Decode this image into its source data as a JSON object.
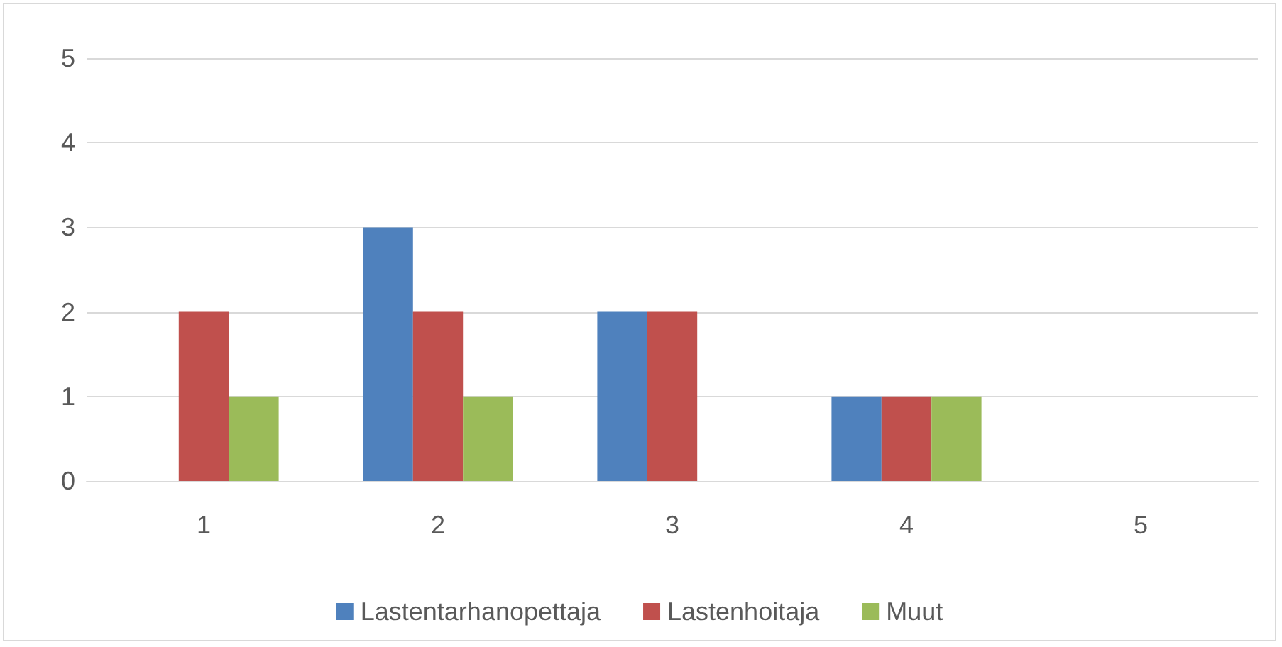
{
  "chart_data": {
    "type": "bar",
    "categories": [
      "1",
      "2",
      "3",
      "4",
      "5"
    ],
    "series": [
      {
        "name": "Lastentarhanopettaja",
        "color": "#4f81bd",
        "values": [
          0,
          3,
          2,
          1,
          0
        ]
      },
      {
        "name": "Lastenhoitaja",
        "color": "#c0504d",
        "values": [
          2,
          2,
          2,
          1,
          0
        ]
      },
      {
        "name": "Muut",
        "color": "#9bbb59",
        "values": [
          1,
          1,
          0,
          1,
          0
        ]
      }
    ],
    "ylim": [
      0,
      5
    ],
    "yticks": [
      0,
      1,
      2,
      3,
      4,
      5
    ],
    "grid": "y",
    "legend": "bottom"
  }
}
